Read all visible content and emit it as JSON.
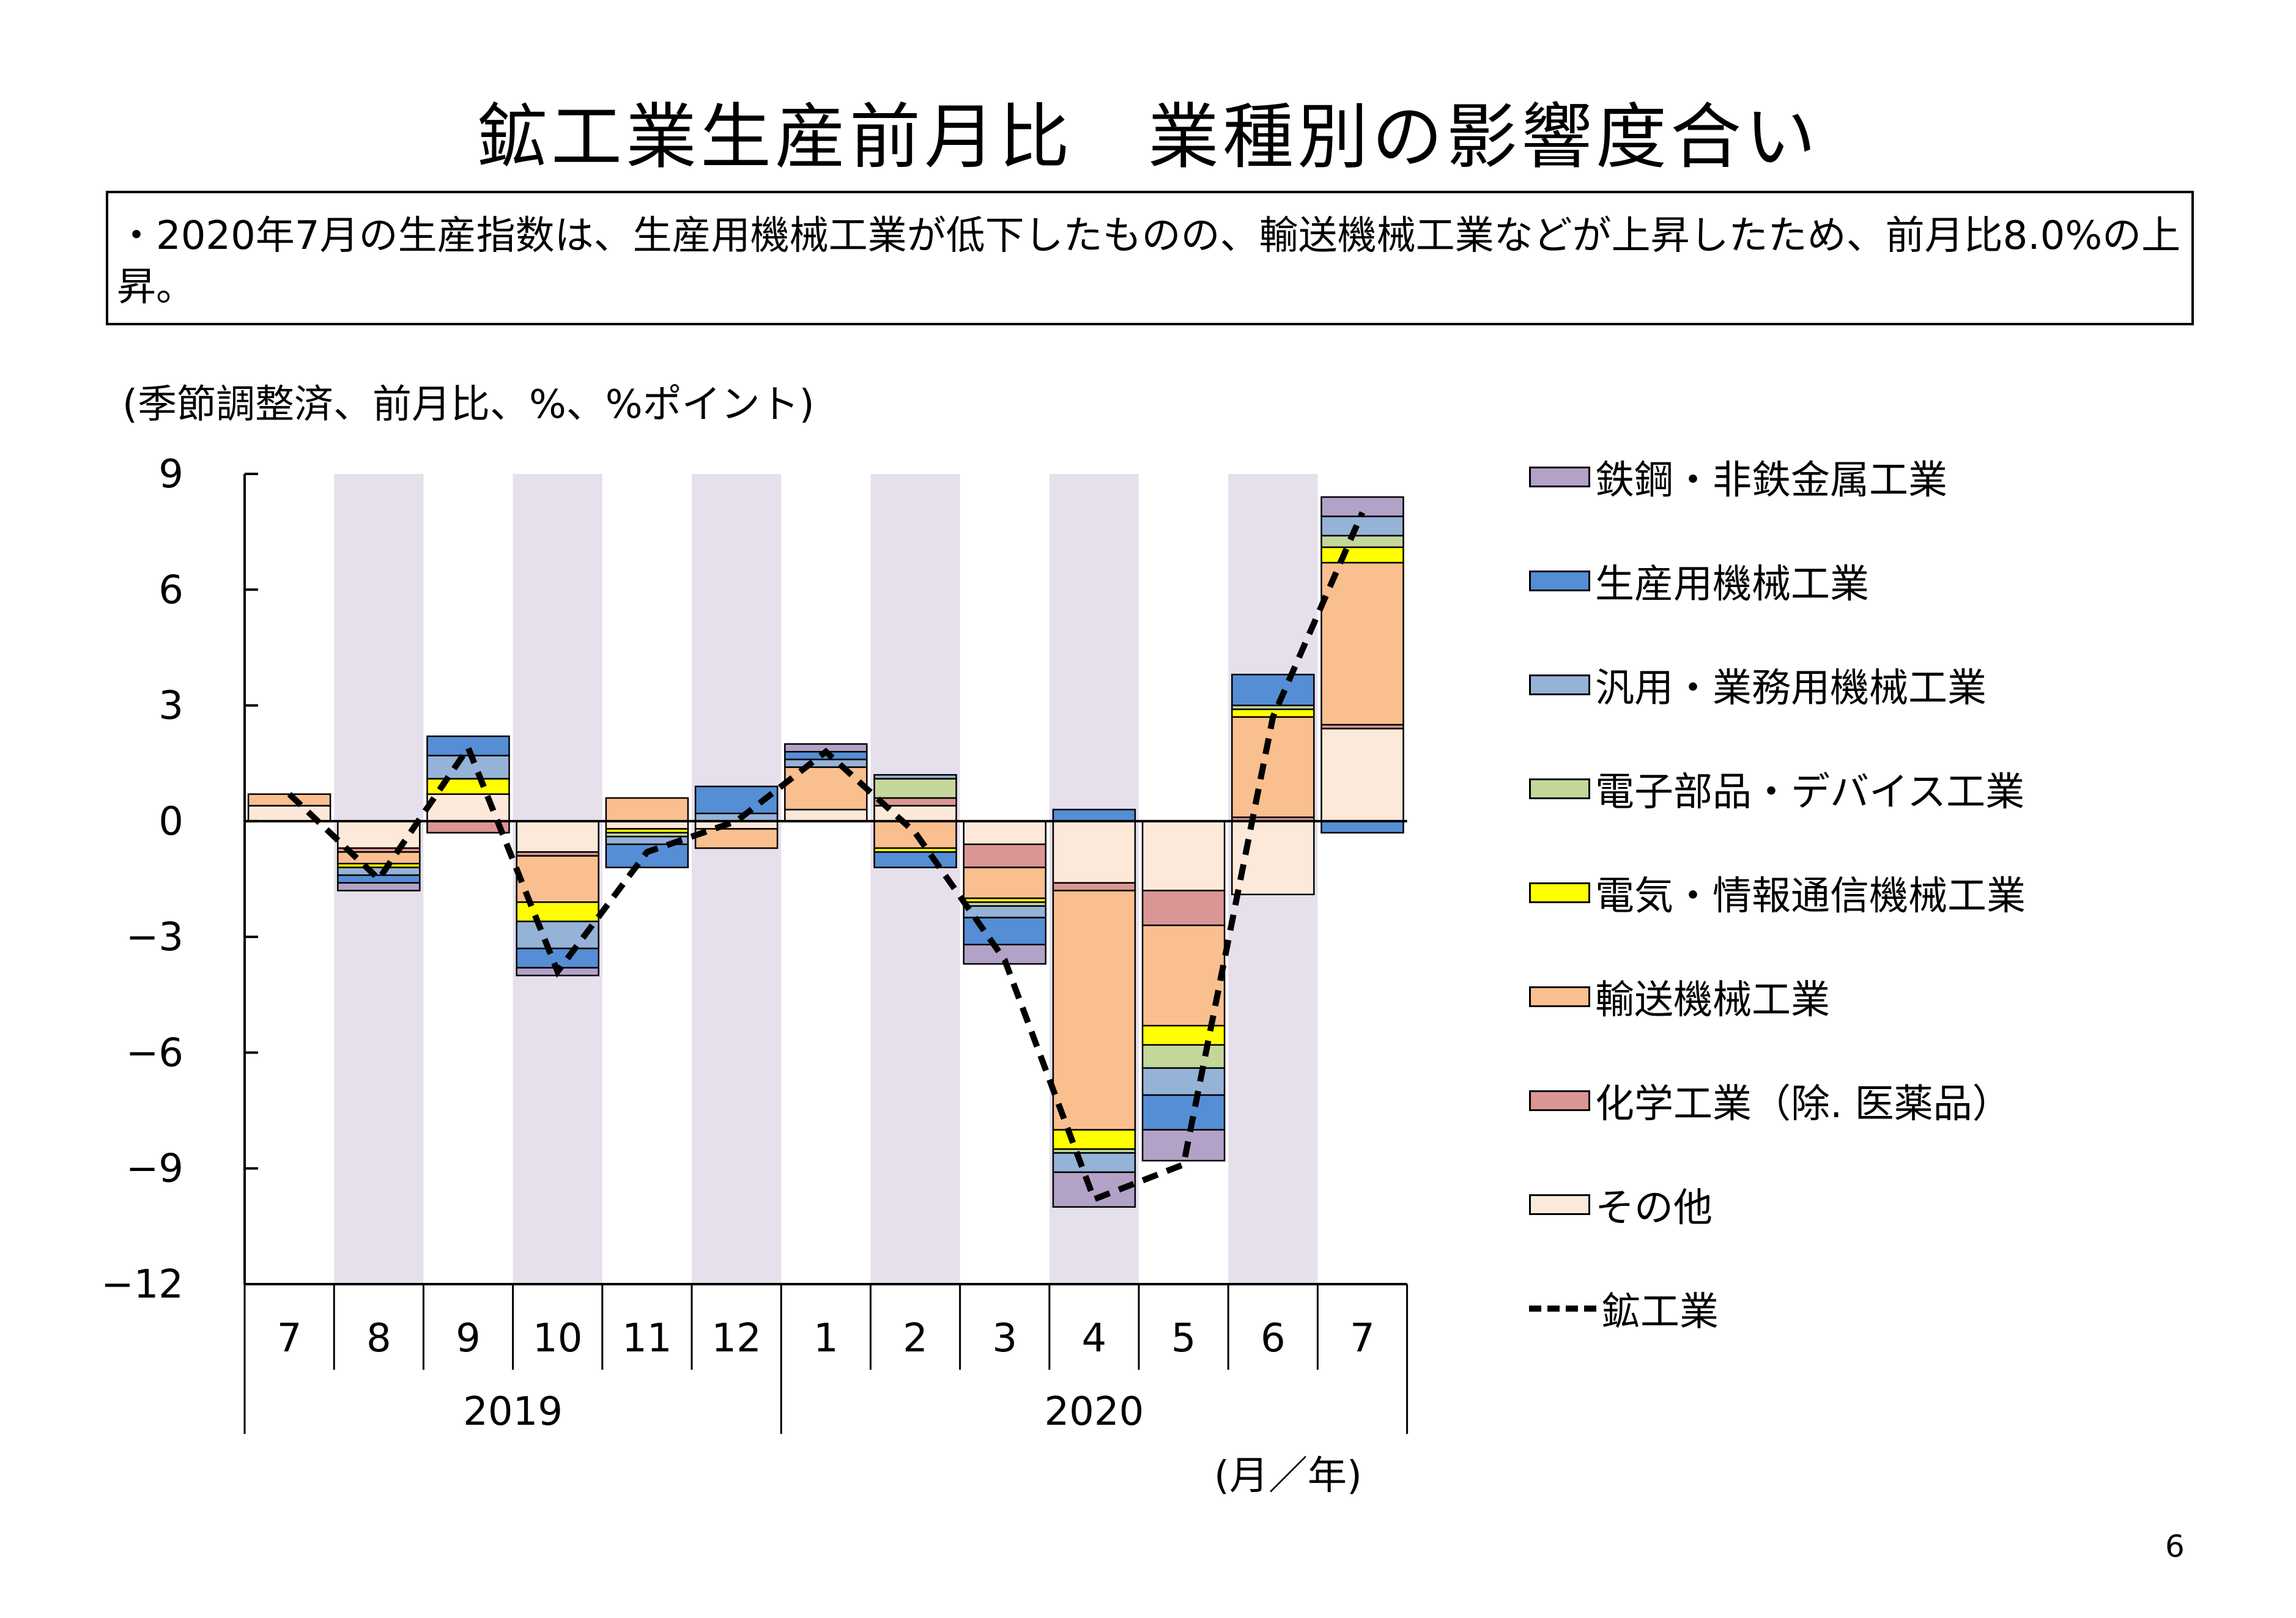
{
  "title": "鉱工業生産前月比　業種別の影響度合い",
  "summary": "・2020年7月の生産指数は、生産用機械工業が低下したものの、輸送機械工業などが上昇したため、前月比8.0%の上昇。",
  "unit_note": "(季節調整済、前月比、%、%ポイント)",
  "x_unit": "(月／年)",
  "page_number": "6",
  "chart_data": {
    "type": "bar",
    "stacked": true,
    "categories": [
      "7",
      "8",
      "9",
      "10",
      "11",
      "12",
      "1",
      "2",
      "3",
      "4",
      "5",
      "6",
      "7"
    ],
    "years": [
      {
        "label": "2019",
        "from": 0,
        "to": 5
      },
      {
        "label": "2020",
        "from": 6,
        "to": 12
      }
    ],
    "shaded_categories": [
      1,
      3,
      5,
      7,
      9,
      11
    ],
    "shade_color": "#e6e0ec",
    "ylim": [
      -12,
      9
    ],
    "yticks": [
      9,
      6,
      3,
      0,
      -3,
      -6,
      -9,
      -12
    ],
    "series": [
      {
        "name": "その他",
        "color": "#fde9d9",
        "values": [
          0.4,
          -0.7,
          0.7,
          -0.8,
          -0.2,
          -0.2,
          0.3,
          0.4,
          -0.6,
          -1.6,
          -1.8,
          -1.9,
          2.4
        ]
      },
      {
        "name": "化学工業（除. 医薬品）",
        "color": "#da9694",
        "values": [
          0.0,
          -0.1,
          -0.3,
          -0.1,
          0.0,
          0.0,
          0.0,
          0.2,
          -0.6,
          -0.2,
          -0.9,
          0.1,
          0.1
        ]
      },
      {
        "name": "輸送機械工業",
        "color": "#fabf8f",
        "values": [
          0.3,
          -0.3,
          0.0,
          -1.2,
          0.6,
          -0.5,
          1.1,
          -0.7,
          -0.8,
          -6.2,
          -2.6,
          2.6,
          4.2
        ]
      },
      {
        "name": "電気・情報通信機械工業",
        "color": "#ffff00",
        "values": [
          0.0,
          -0.1,
          0.4,
          -0.5,
          -0.1,
          0.0,
          0.0,
          -0.1,
          -0.1,
          -0.5,
          -0.5,
          0.2,
          0.4
        ]
      },
      {
        "name": "電子部品・デバイス工業",
        "color": "#c4d79b",
        "values": [
          0.0,
          0.0,
          0.0,
          0.0,
          -0.1,
          0.0,
          0.0,
          0.5,
          -0.1,
          -0.1,
          -0.6,
          0.1,
          0.3
        ]
      },
      {
        "name": "汎用・業務用機械工業",
        "color": "#95b3d7",
        "values": [
          0.0,
          -0.2,
          0.6,
          -0.7,
          -0.2,
          0.2,
          0.2,
          0.1,
          -0.3,
          -0.5,
          -0.7,
          0.0,
          0.5
        ]
      },
      {
        "name": "生産用機械工業",
        "color": "#558ed5",
        "values": [
          0.0,
          -0.2,
          0.5,
          -0.5,
          -0.6,
          0.7,
          0.2,
          -0.4,
          -0.7,
          0.3,
          -0.9,
          0.8,
          -0.3
        ]
      },
      {
        "name": "鉄鋼・非鉄金属工業",
        "color": "#b3a2c7",
        "values": [
          0.0,
          -0.2,
          0.0,
          -0.2,
          0.0,
          0.0,
          0.2,
          0.0,
          -0.5,
          -0.9,
          -0.8,
          0.0,
          0.5
        ]
      }
    ],
    "line": {
      "name": "鉱工業",
      "color": "#000000",
      "values": [
        0.7,
        -1.5,
        1.9,
        -3.9,
        -0.8,
        0.0,
        1.8,
        -0.3,
        -3.6,
        -9.8,
        -8.9,
        2.7,
        8.0
      ]
    },
    "legend_order": [
      "鉄鋼・非鉄金属工業",
      "生産用機械工業",
      "汎用・業務用機械工業",
      "電子部品・デバイス工業",
      "電気・情報通信機械工業",
      "輸送機械工業",
      "化学工業（除. 医薬品）",
      "その他",
      "鉱工業"
    ],
    "legend_position": "right",
    "grid": false
  }
}
